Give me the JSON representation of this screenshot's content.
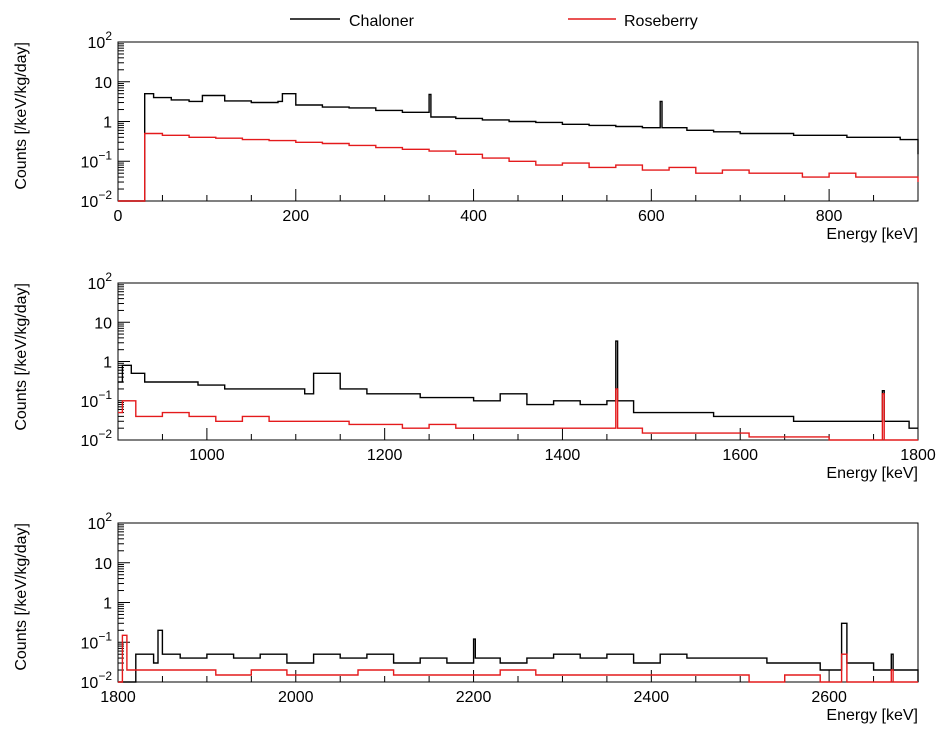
{
  "legend": {
    "placement": "top-center",
    "entries": [
      {
        "label": "Chaloner",
        "color": "#000000"
      },
      {
        "label": "Roseberry",
        "color": "#e41a1c"
      }
    ]
  },
  "chart_data": [
    {
      "type": "line",
      "step": true,
      "xlabel": "Energy [keV]",
      "ylabel": "Counts [/keV/kg/day]",
      "xlim": [
        0,
        900
      ],
      "ylim": [
        0.01,
        100
      ],
      "yscale": "log",
      "xticks": [
        0,
        200,
        400,
        600,
        800
      ],
      "yticks": [
        {
          "value": 0.01,
          "base": "10",
          "exp": "−2"
        },
        {
          "value": 0.1,
          "base": "10",
          "exp": "−1"
        },
        {
          "value": 1,
          "base": "1",
          "exp": ""
        },
        {
          "value": 10,
          "base": "10",
          "exp": ""
        },
        {
          "value": 100,
          "base": "10",
          "exp": "2"
        }
      ],
      "grid": false,
      "series": [
        {
          "name": "Chaloner",
          "color": "#000000",
          "x": [
            0,
            30,
            30,
            40,
            60,
            80,
            95,
            120,
            150,
            180,
            185,
            200,
            230,
            260,
            290,
            320,
            350,
            352,
            380,
            410,
            440,
            470,
            500,
            530,
            560,
            590,
            610,
            612,
            640,
            670,
            700,
            730,
            760,
            790,
            820,
            850,
            880,
            900
          ],
          "y": [
            0.01,
            0.01,
            5,
            4,
            3.5,
            3.2,
            4.5,
            3.3,
            3,
            3.2,
            5,
            2.6,
            2.3,
            2.2,
            1.9,
            1.7,
            4.8,
            1.3,
            1.2,
            1.1,
            1.0,
            0.95,
            0.85,
            0.8,
            0.75,
            0.7,
            3.2,
            0.7,
            0.6,
            0.55,
            0.5,
            0.5,
            0.45,
            0.45,
            0.4,
            0.4,
            0.35,
            0.15
          ]
        },
        {
          "name": "Roseberry",
          "color": "#e41a1c",
          "x": [
            0,
            30,
            30,
            50,
            80,
            110,
            140,
            170,
            200,
            230,
            260,
            290,
            320,
            350,
            380,
            410,
            440,
            470,
            500,
            530,
            560,
            590,
            620,
            650,
            680,
            710,
            740,
            770,
            800,
            830,
            860,
            900
          ],
          "y": [
            0.01,
            0.01,
            0.5,
            0.45,
            0.4,
            0.38,
            0.35,
            0.33,
            0.3,
            0.28,
            0.25,
            0.22,
            0.2,
            0.18,
            0.15,
            0.12,
            0.1,
            0.08,
            0.09,
            0.07,
            0.08,
            0.06,
            0.07,
            0.05,
            0.06,
            0.05,
            0.05,
            0.04,
            0.05,
            0.04,
            0.04,
            0.03
          ]
        }
      ]
    },
    {
      "type": "line",
      "step": true,
      "xlabel": "Energy [keV]",
      "ylabel": "Counts [/keV/kg/day]",
      "xlim": [
        900,
        1800
      ],
      "ylim": [
        0.01,
        100
      ],
      "yscale": "log",
      "xticks": [
        1000,
        1200,
        1400,
        1600,
        1800
      ],
      "yticks": [
        {
          "value": 0.01,
          "base": "10",
          "exp": "−2"
        },
        {
          "value": 0.1,
          "base": "10",
          "exp": "−1"
        },
        {
          "value": 1,
          "base": "1",
          "exp": ""
        },
        {
          "value": 10,
          "base": "10",
          "exp": ""
        },
        {
          "value": 100,
          "base": "10",
          "exp": "2"
        }
      ],
      "grid": false,
      "series": [
        {
          "name": "Chaloner",
          "color": "#000000",
          "x": [
            900,
            905,
            915,
            930,
            960,
            990,
            1020,
            1050,
            1080,
            1110,
            1120,
            1150,
            1180,
            1210,
            1240,
            1270,
            1300,
            1330,
            1360,
            1390,
            1420,
            1450,
            1460,
            1462,
            1480,
            1510,
            1540,
            1570,
            1600,
            1630,
            1660,
            1690,
            1720,
            1760,
            1762,
            1790,
            1800
          ],
          "y": [
            0.3,
            0.8,
            0.5,
            0.3,
            0.3,
            0.25,
            0.2,
            0.2,
            0.2,
            0.15,
            0.5,
            0.2,
            0.15,
            0.15,
            0.12,
            0.12,
            0.1,
            0.15,
            0.08,
            0.1,
            0.08,
            0.1,
            3.3,
            0.1,
            0.05,
            0.05,
            0.05,
            0.04,
            0.04,
            0.04,
            0.03,
            0.03,
            0.03,
            0.18,
            0.03,
            0.02,
            0.02
          ]
        },
        {
          "name": "Roseberry",
          "color": "#e41a1c",
          "x": [
            900,
            905,
            920,
            950,
            980,
            1010,
            1040,
            1070,
            1100,
            1130,
            1160,
            1190,
            1220,
            1250,
            1280,
            1310,
            1340,
            1370,
            1400,
            1430,
            1460,
            1462,
            1490,
            1520,
            1550,
            1580,
            1610,
            1640,
            1670,
            1700,
            1730,
            1760,
            1762,
            1800
          ],
          "y": [
            0.05,
            0.1,
            0.04,
            0.05,
            0.04,
            0.03,
            0.04,
            0.03,
            0.03,
            0.03,
            0.025,
            0.025,
            0.02,
            0.025,
            0.02,
            0.02,
            0.02,
            0.02,
            0.02,
            0.02,
            0.2,
            0.02,
            0.015,
            0.015,
            0.015,
            0.015,
            0.012,
            0.012,
            0.012,
            0.01,
            0.01,
            0.15,
            0.01,
            0.01
          ]
        }
      ]
    },
    {
      "type": "line",
      "step": true,
      "xlabel": "Energy [keV]",
      "ylabel": "Counts [/keV/kg/day]",
      "xlim": [
        1800,
        2700
      ],
      "ylim": [
        0.01,
        100
      ],
      "yscale": "log",
      "xticks": [
        1800,
        2000,
        2200,
        2400,
        2600
      ],
      "yticks": [
        {
          "value": 0.01,
          "base": "10",
          "exp": "−2"
        },
        {
          "value": 0.1,
          "base": "10",
          "exp": "−1"
        },
        {
          "value": 1,
          "base": "1",
          "exp": ""
        },
        {
          "value": 10,
          "base": "10",
          "exp": ""
        },
        {
          "value": 100,
          "base": "10",
          "exp": "2"
        }
      ],
      "grid": false,
      "series": [
        {
          "name": "Chaloner",
          "color": "#000000",
          "x": [
            1800,
            1820,
            1840,
            1845,
            1850,
            1870,
            1900,
            1930,
            1960,
            1990,
            2020,
            2050,
            2080,
            2110,
            2140,
            2170,
            2200,
            2202,
            2230,
            2260,
            2290,
            2320,
            2350,
            2380,
            2410,
            2440,
            2470,
            2500,
            2530,
            2560,
            2590,
            2614,
            2620,
            2650,
            2670,
            2672,
            2700
          ],
          "y": [
            0.01,
            0.05,
            0.03,
            0.2,
            0.05,
            0.04,
            0.05,
            0.04,
            0.05,
            0.03,
            0.05,
            0.04,
            0.05,
            0.03,
            0.04,
            0.03,
            0.12,
            0.04,
            0.03,
            0.04,
            0.05,
            0.04,
            0.05,
            0.03,
            0.05,
            0.04,
            0.04,
            0.04,
            0.03,
            0.03,
            0.02,
            0.3,
            0.03,
            0.02,
            0.05,
            0.02,
            0.01
          ]
        },
        {
          "name": "Roseberry",
          "color": "#e41a1c",
          "x": [
            1800,
            1805,
            1810,
            1830,
            1870,
            1910,
            1950,
            1990,
            2030,
            2070,
            2110,
            2150,
            2190,
            2230,
            2270,
            2310,
            2350,
            2390,
            2430,
            2470,
            2510,
            2550,
            2590,
            2614,
            2620,
            2660,
            2670,
            2672,
            2700
          ],
          "y": [
            0.01,
            0.15,
            0.02,
            0.02,
            0.02,
            0.015,
            0.02,
            0.015,
            0.015,
            0.02,
            0.015,
            0.015,
            0.015,
            0.02,
            0.015,
            0.015,
            0.015,
            0.015,
            0.015,
            0.015,
            0.01,
            0.015,
            0.01,
            0.05,
            0.01,
            0.01,
            0.02,
            0.01,
            0.01
          ]
        }
      ]
    }
  ]
}
